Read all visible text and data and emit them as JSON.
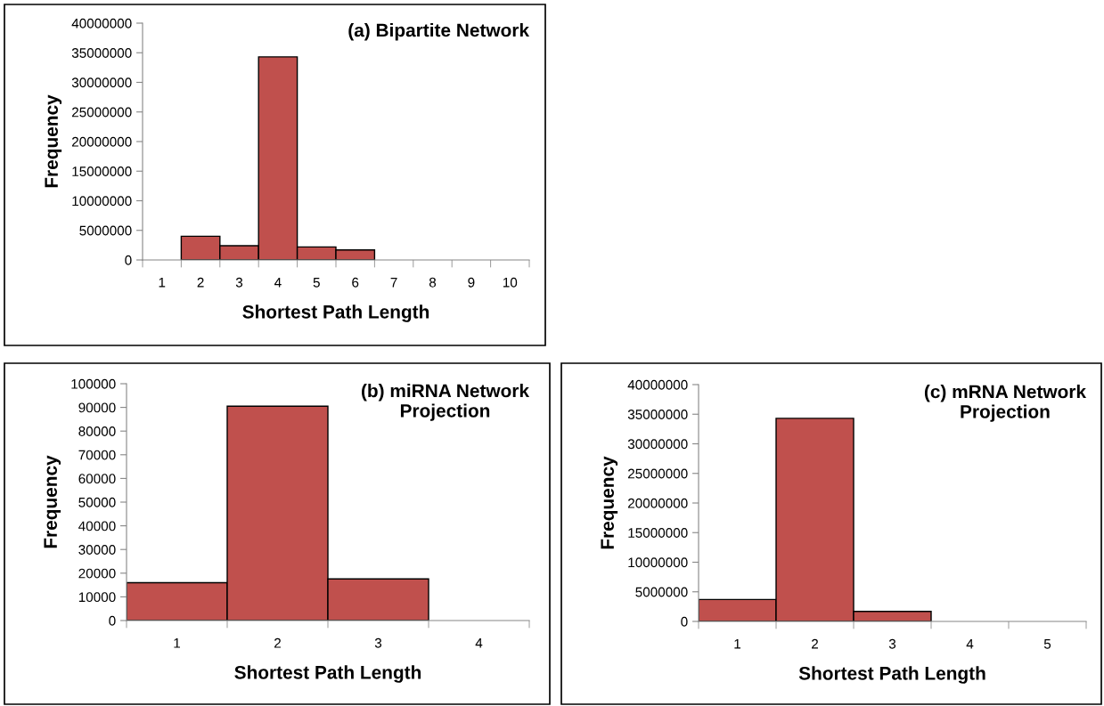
{
  "chart_data": [
    {
      "type": "bar",
      "title": "(a) Bipartite Network",
      "xlabel": "Shortest Path Length",
      "ylabel": "Frequency",
      "categories": [
        "1",
        "2",
        "3",
        "4",
        "5",
        "6",
        "7",
        "8",
        "9",
        "10"
      ],
      "values": [
        0,
        4000000,
        2400000,
        34300000,
        2200000,
        1700000,
        0,
        0,
        0,
        0
      ],
      "color": "#c0504d",
      "ylim": [
        0,
        40000000
      ],
      "yticks": [
        0,
        5000000,
        10000000,
        15000000,
        20000000,
        25000000,
        30000000,
        35000000,
        40000000
      ],
      "grid": false
    },
    {
      "type": "bar",
      "title": "(b) miRNA Network\nProjection",
      "xlabel": "Shortest Path Length",
      "ylabel": "Frequency",
      "categories": [
        "1",
        "2",
        "3",
        "4"
      ],
      "values": [
        16000,
        90500,
        17600,
        0
      ],
      "color": "#c0504d",
      "ylim": [
        0,
        100000
      ],
      "yticks": [
        0,
        10000,
        20000,
        30000,
        40000,
        50000,
        60000,
        70000,
        80000,
        90000,
        100000
      ],
      "grid": false
    },
    {
      "type": "bar",
      "title": "(c) mRNA Network\nProjection",
      "xlabel": "Shortest Path Length",
      "ylabel": "Frequency",
      "categories": [
        "1",
        "2",
        "3",
        "4",
        "5"
      ],
      "values": [
        3700000,
        34300000,
        1700000,
        0,
        0
      ],
      "color": "#c0504d",
      "ylim": [
        0,
        40000000
      ],
      "yticks": [
        0,
        5000000,
        10000000,
        15000000,
        20000000,
        25000000,
        30000000,
        35000000,
        40000000
      ],
      "grid": false
    }
  ]
}
